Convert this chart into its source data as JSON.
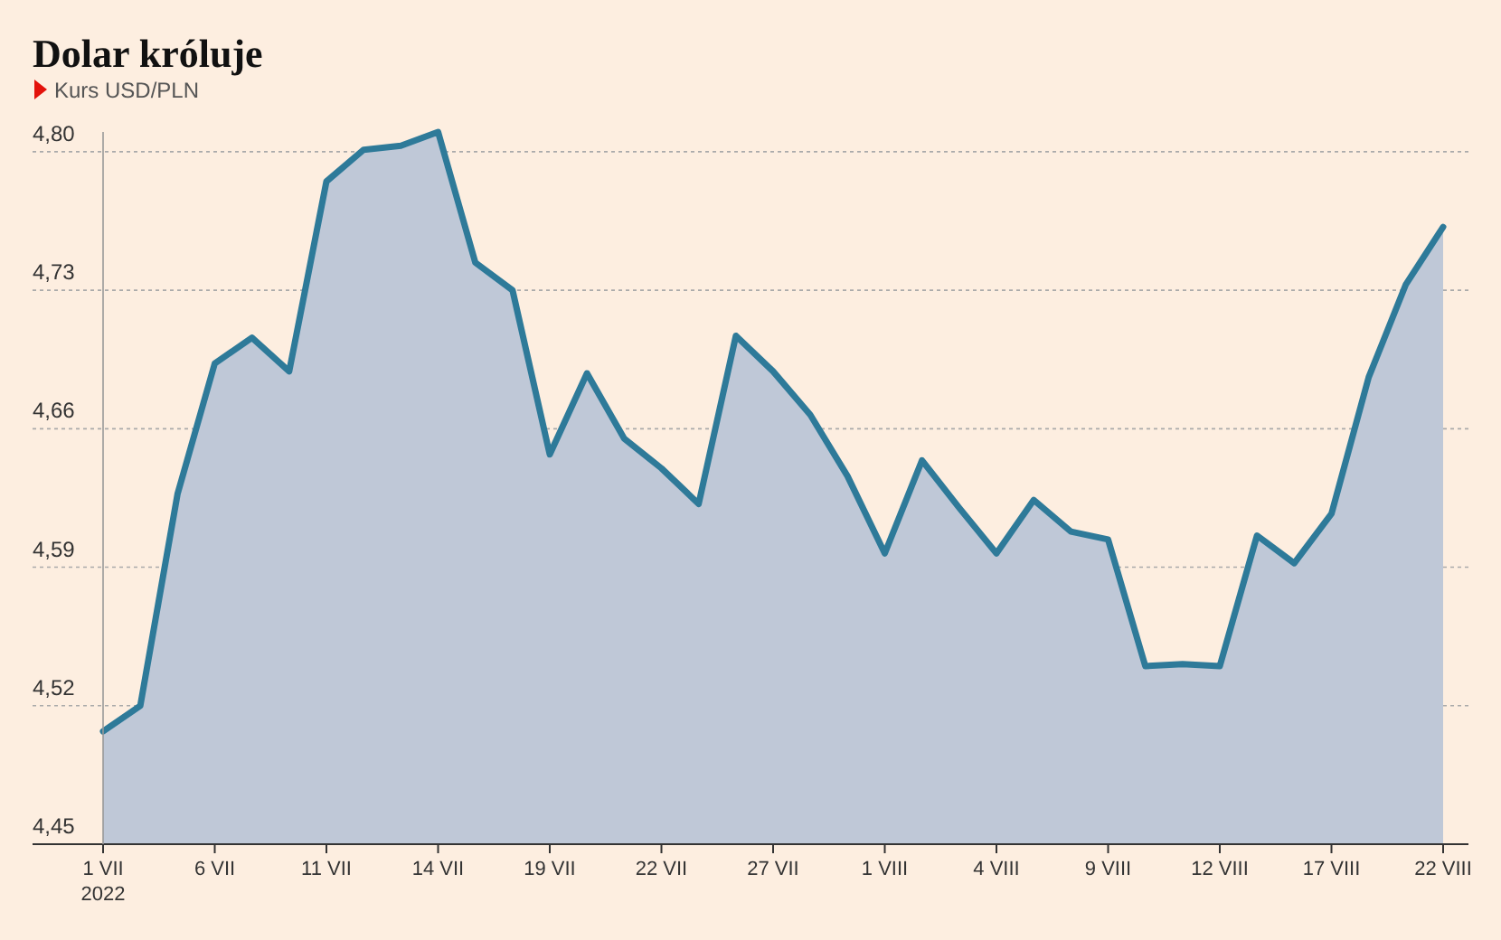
{
  "chart_data": {
    "type": "area",
    "title": "Dolar króluje",
    "subtitle": "Kurs USD/PLN",
    "categories": [
      "1 VII\n2022",
      null,
      null,
      "6 VII",
      null,
      null,
      "11 VII",
      null,
      null,
      "14 VII",
      null,
      null,
      "19 VII",
      null,
      null,
      "22 VII",
      null,
      null,
      "27 VII",
      null,
      null,
      "1 VIII",
      null,
      null,
      "4 VIII",
      null,
      null,
      "9 VIII",
      null,
      null,
      "12 VIII",
      null,
      null,
      "17 VIII",
      null,
      null,
      "22 VIII"
    ],
    "series": [
      {
        "color": "#2e7a99",
        "values": [
          4.507,
          4.52,
          4.627,
          4.693,
          4.706,
          4.689,
          4.785,
          4.801,
          4.803,
          4.81,
          4.744,
          4.73,
          4.647,
          4.688,
          4.655,
          4.64,
          4.622,
          4.707,
          4.689,
          4.667,
          4.636,
          4.597,
          4.644,
          4.62,
          4.597,
          4.624,
          4.608,
          4.604,
          4.54,
          4.541,
          4.54,
          4.606,
          4.592,
          4.617,
          4.686,
          4.733,
          4.762
        ]
      }
    ],
    "yticks": [
      {
        "value": 4.45,
        "label": "4,45"
      },
      {
        "value": 4.52,
        "label": "4,52"
      },
      {
        "value": 4.59,
        "label": "4,59"
      },
      {
        "value": 4.66,
        "label": "4,66"
      },
      {
        "value": 4.73,
        "label": "4,73"
      },
      {
        "value": 4.8,
        "label": "4,80"
      }
    ],
    "ylim": [
      4.45,
      4.81
    ],
    "grid": "y"
  }
}
